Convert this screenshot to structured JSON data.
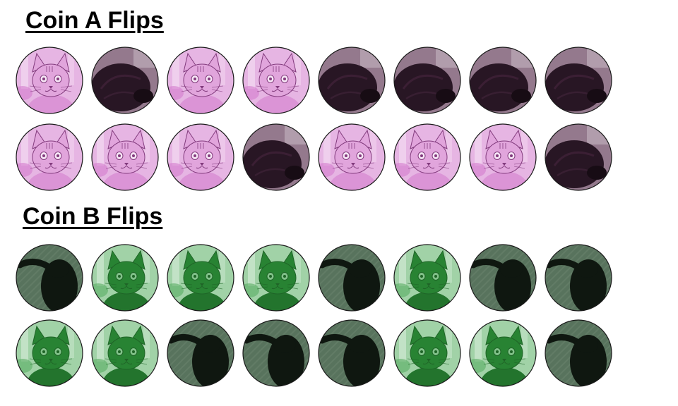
{
  "titles": {
    "coin_a": "Coin A Flips",
    "coin_b": "Coin B Flips"
  },
  "coin_a": {
    "face_tint": "#c85bc0",
    "back_tint": "#5a3150",
    "faces_icon": "tabby-cat-face",
    "backs_icon": "curled-cat-back",
    "rows": [
      [
        "face",
        "back",
        "face",
        "face",
        "back",
        "back",
        "back",
        "back"
      ],
      [
        "face",
        "face",
        "face",
        "back",
        "face",
        "face",
        "face",
        "back"
      ]
    ]
  },
  "coin_b": {
    "face_tint": "#2f9a3c",
    "back_tint": "#3a5a40",
    "faces_icon": "black-cat-face",
    "backs_icon": "black-cat-back",
    "rows": [
      [
        "back",
        "face",
        "face",
        "face",
        "back",
        "face",
        "back",
        "back"
      ],
      [
        "face",
        "face",
        "back",
        "back",
        "back",
        "face",
        "face",
        "back"
      ]
    ]
  }
}
